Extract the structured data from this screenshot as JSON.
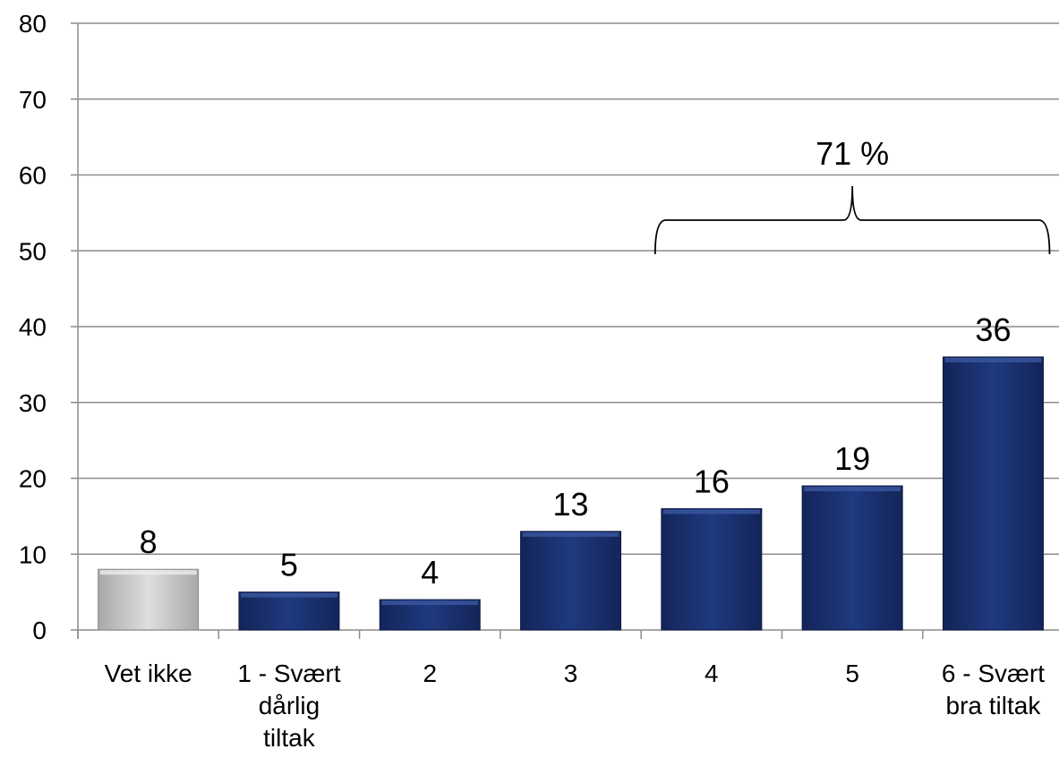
{
  "chart_data": {
    "type": "bar",
    "categories": [
      "Vet ikke",
      "1 - Svært dårlig tiltak",
      "2",
      "3",
      "4",
      "5",
      "6 - Svært bra tiltak"
    ],
    "category_lines": [
      [
        "Vet ikke"
      ],
      [
        "1 - Svært",
        "dårlig",
        "tiltak"
      ],
      [
        "2"
      ],
      [
        "3"
      ],
      [
        "4"
      ],
      [
        "5"
      ],
      [
        "6 - Svært",
        "bra tiltak"
      ]
    ],
    "values": [
      8,
      5,
      4,
      13,
      16,
      19,
      36
    ],
    "data_labels": [
      "8",
      "5",
      "4",
      "13",
      "16",
      "19",
      "36"
    ],
    "bar_colors": [
      "#c4c4c4",
      "#1a2f6e",
      "#1a2f6e",
      "#1a2f6e",
      "#1a2f6e",
      "#1a2f6e",
      "#1a2f6e"
    ],
    "ylim": [
      0,
      80
    ],
    "yticks": [
      "0",
      "10",
      "20",
      "30",
      "40",
      "50",
      "60",
      "70",
      "80"
    ],
    "grid": true,
    "annotation": {
      "text": "71 %",
      "from_category": "4",
      "to_category": "6 - Svært bra tiltak"
    }
  }
}
